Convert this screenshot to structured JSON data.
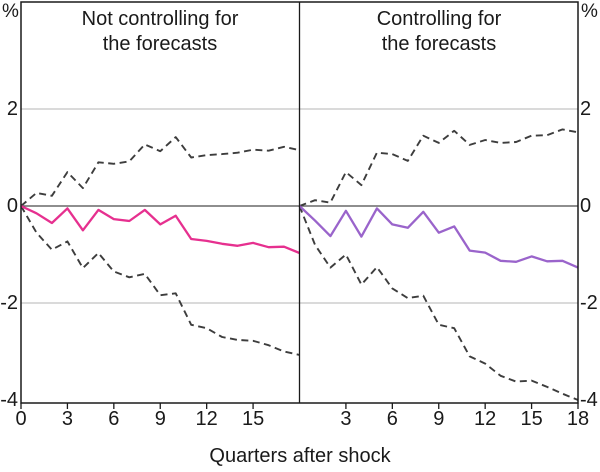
{
  "chart_data": {
    "type": "line",
    "xlabel": "Quarters after shock",
    "unit": "%",
    "x": [
      0,
      1,
      2,
      3,
      4,
      5,
      6,
      7,
      8,
      9,
      10,
      11,
      12,
      13,
      14,
      15,
      16,
      17,
      18
    ],
    "yticks": [
      2,
      0,
      -2,
      -4
    ],
    "ylim": [
      -4.1,
      4.2
    ],
    "grid": true,
    "zero_line": true,
    "colors": {
      "response_left": "#e6308f",
      "response_right": "#9a64cb",
      "band": "#3d3d3d",
      "gridline": "#b4b4b4",
      "zeroline": "#4a4a4a",
      "frame": "#1a1a1a"
    },
    "panels": [
      {
        "title": "Not controlling for\nthe forecasts",
        "xticks": [
          0,
          3,
          6,
          9,
          12,
          15
        ],
        "series": [
          {
            "name": "response",
            "style": "solid",
            "color": "#e6308f",
            "values": [
              0,
              -0.15,
              -0.35,
              -0.05,
              -0.5,
              -0.08,
              -0.27,
              -0.31,
              -0.08,
              -0.38,
              -0.2,
              -0.68,
              -0.72,
              -0.78,
              -0.82,
              -0.76,
              -0.85,
              -0.84,
              -0.97
            ]
          },
          {
            "name": "upper-confidence-band",
            "style": "dashed",
            "color": "#3d3d3d",
            "values": [
              0,
              0.27,
              0.21,
              0.7,
              0.37,
              0.9,
              0.87,
              0.92,
              1.27,
              1.13,
              1.42,
              1.0,
              1.05,
              1.07,
              1.1,
              1.16,
              1.14,
              1.22,
              1.15
            ]
          },
          {
            "name": "lower-confidence-band",
            "style": "dashed",
            "color": "#3d3d3d",
            "values": [
              0,
              -0.55,
              -0.9,
              -0.73,
              -1.28,
              -0.97,
              -1.35,
              -1.47,
              -1.4,
              -1.84,
              -1.8,
              -2.45,
              -2.52,
              -2.7,
              -2.76,
              -2.78,
              -2.87,
              -3.0,
              -3.07
            ]
          }
        ]
      },
      {
        "title": "Controlling for\nthe forecasts",
        "xticks": [
          3,
          6,
          9,
          12,
          15,
          18
        ],
        "series": [
          {
            "name": "response",
            "style": "solid",
            "color": "#9a64cb",
            "values": [
              0,
              -0.3,
              -0.62,
              -0.1,
              -0.63,
              -0.05,
              -0.38,
              -0.45,
              -0.12,
              -0.55,
              -0.42,
              -0.92,
              -0.96,
              -1.13,
              -1.15,
              -1.04,
              -1.14,
              -1.13,
              -1.27
            ]
          },
          {
            "name": "upper-confidence-band",
            "style": "dashed",
            "color": "#3d3d3d",
            "values": [
              0,
              0.12,
              0.07,
              0.7,
              0.43,
              1.1,
              1.07,
              0.93,
              1.45,
              1.3,
              1.55,
              1.26,
              1.36,
              1.3,
              1.32,
              1.45,
              1.46,
              1.58,
              1.52
            ]
          },
          {
            "name": "lower-confidence-band",
            "style": "dashed",
            "color": "#3d3d3d",
            "values": [
              0,
              -0.8,
              -1.27,
              -1.0,
              -1.62,
              -1.26,
              -1.7,
              -1.9,
              -1.85,
              -2.45,
              -2.52,
              -3.1,
              -3.25,
              -3.5,
              -3.62,
              -3.6,
              -3.73,
              -3.87,
              -4.0
            ]
          }
        ]
      }
    ]
  }
}
